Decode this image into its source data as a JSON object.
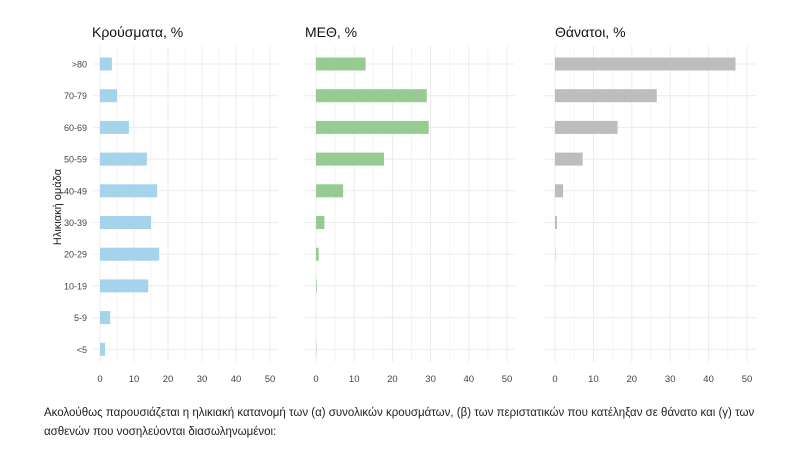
{
  "chart_data": {
    "type": "bar",
    "orientation": "horizontal",
    "ylabel": "Ηλικιακή ομάδα",
    "categories": [
      ">80",
      "70-79",
      "60-69",
      "50-59",
      "40-49",
      "30-39",
      "20-29",
      "10-19",
      "5-9",
      "<5"
    ],
    "xlim": [
      0,
      50
    ],
    "xticks": [
      "0",
      "10",
      "20",
      "30",
      "40",
      "50"
    ],
    "grid": true,
    "panels": [
      {
        "title": "Κρούσματα, %",
        "color": "#a6d3ec",
        "values": [
          3.5,
          5,
          8.5,
          13.8,
          16.8,
          15,
          17.4,
          14.2,
          3,
          1.5
        ]
      },
      {
        "title": "ΜΕΘ, %",
        "color": "#98cb92",
        "values": [
          13,
          29,
          29.5,
          17.8,
          7.1,
          2.2,
          0.7,
          0.2,
          0,
          0.1
        ]
      },
      {
        "title": "Θάνατοι, %",
        "color": "#bdbdbd",
        "values": [
          47,
          26.5,
          16.3,
          7.2,
          2.1,
          0.5,
          0.1,
          0,
          0,
          0
        ]
      }
    ]
  },
  "caption": "Ακολούθως παρουσιάζεται η ηλικιακή κατανομή των (α) συνολικών κρουσμάτων, (β) των περιστατικών που κατέληξαν σε θάνατο και (γ) των ασθενών που νοσηλεύονται διασωληνωμένοι:"
}
